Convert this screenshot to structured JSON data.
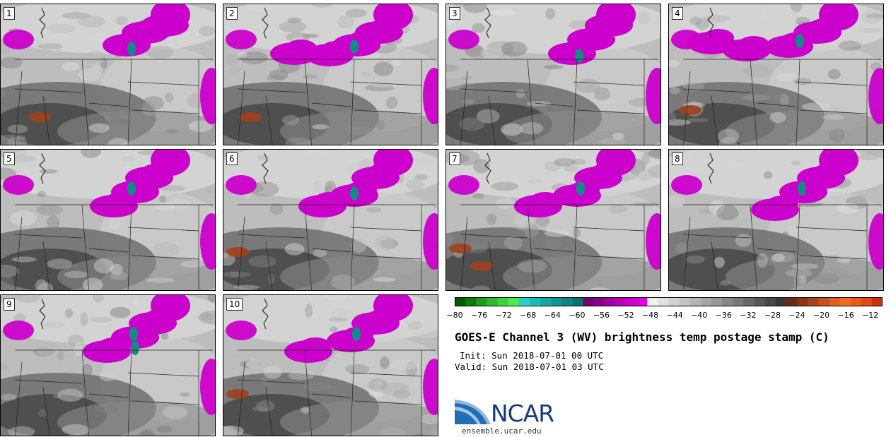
{
  "panels": [
    {
      "label": "1"
    },
    {
      "label": "2"
    },
    {
      "label": "3"
    },
    {
      "label": "4"
    },
    {
      "label": "5"
    },
    {
      "label": "6"
    },
    {
      "label": "7"
    },
    {
      "label": "8"
    },
    {
      "label": "9"
    },
    {
      "label": "10"
    }
  ],
  "colorbar": {
    "ticks": [
      "−80",
      "−76",
      "−72",
      "−68",
      "−64",
      "−60",
      "−56",
      "−52",
      "−48",
      "−44",
      "−40",
      "−36",
      "−32",
      "−28",
      "−24",
      "−20",
      "−16",
      "−12"
    ],
    "tick_values": [
      -80,
      -76,
      -72,
      -68,
      -64,
      -60,
      -56,
      -52,
      -48,
      -44,
      -40,
      -36,
      -32,
      -28,
      -24,
      -20,
      -16,
      -12
    ],
    "range": [
      -80,
      -10
    ],
    "colors": [
      "#005a00",
      "#107810",
      "#1e9b1e",
      "#2db82d",
      "#3cd23c",
      "#4ceb4c",
      "#25d0c8",
      "#1bbcb4",
      "#16a8a3",
      "#129692",
      "#0f8480",
      "#0c716e",
      "#740074",
      "#8a008a",
      "#a000a0",
      "#b600b6",
      "#cb00cb",
      "#df00df",
      "#f0f0f0",
      "#e1e1e1",
      "#d2d2d2",
      "#c3c3c3",
      "#b4b4b4",
      "#a5a5a5",
      "#969696",
      "#878787",
      "#787878",
      "#686868",
      "#585858",
      "#484848",
      "#383838",
      "#6a2a14",
      "#8c3418",
      "#a8421c",
      "#c4501f",
      "#e05f20",
      "#f06e1c",
      "#ee5a18",
      "#e04814",
      "#cc3210"
    ]
  },
  "title": "GOES-E Channel 3 (WV) brightness temp postage stamp (C)",
  "init_line": "Init: Sun 2018-07-01 00 UTC",
  "valid_line": "Valid: Sun 2018-07-01 03 UTC",
  "logo": {
    "text": "NCAR",
    "url": "ensemble.ucar.edu",
    "color": "#153c7b"
  },
  "map_colors": {
    "moist": "#cc00cc",
    "very_cold": "#138b88",
    "warm": "#a0401c"
  }
}
